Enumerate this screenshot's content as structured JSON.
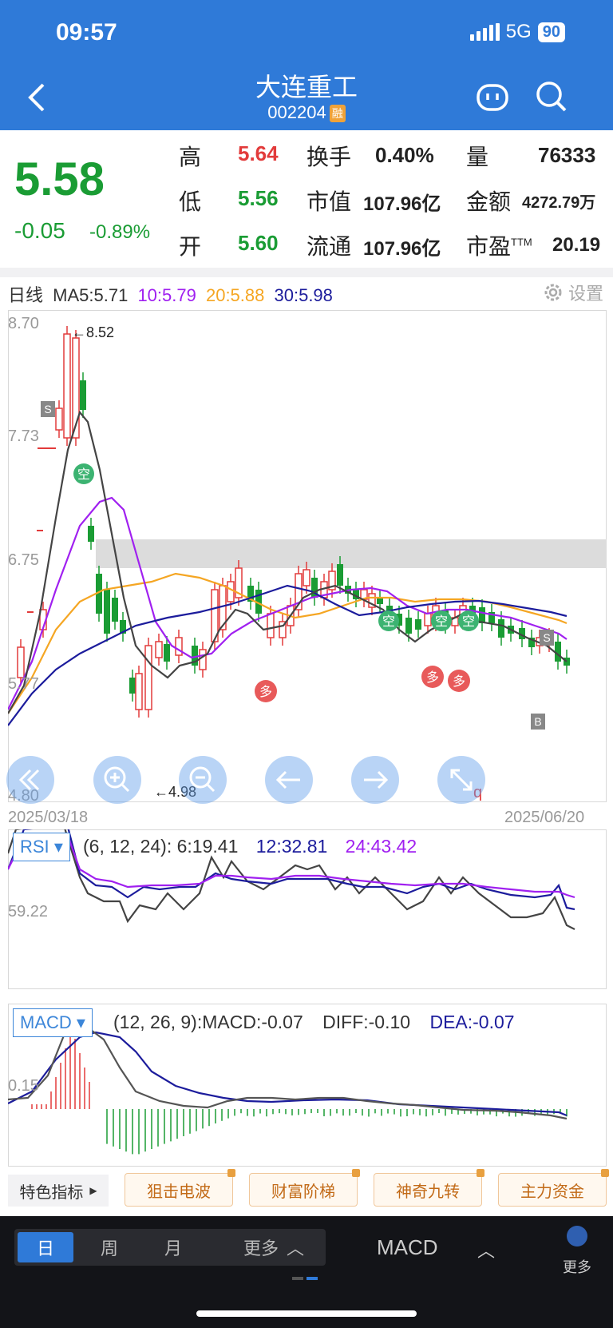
{
  "status": {
    "time": "09:57",
    "network": "5G",
    "battery": "90"
  },
  "stock": {
    "name": "大连重工",
    "code": "002204",
    "tag": "融"
  },
  "quote": {
    "price": "5.58",
    "change": "-0.05",
    "change_pct": "-0.89%",
    "high_label": "高",
    "high": "5.64",
    "low_label": "低",
    "low": "5.56",
    "open_label": "开",
    "open": "5.60",
    "turnover_label": "换手",
    "turnover": "0.40%",
    "mcap_label": "市值",
    "mcap": "107.96亿",
    "float_label": "流通",
    "float": "107.96亿",
    "vol_label": "量",
    "vol": "76333",
    "amount_label": "金额",
    "amount": "4272.79万",
    "pe_label": "市盈",
    "pe_sup": "TTM",
    "pe": "20.19"
  },
  "kline": {
    "period_label": "日线",
    "ma5": "MA5:5.71",
    "ma10": "10:5.79",
    "ma20": "20:5.88",
    "ma30": "30:5.98",
    "settings": "设置",
    "y_labels": [
      "8.70",
      "7.73",
      "6.75",
      "5.77",
      "4.80"
    ],
    "high_mark": "←8.52",
    "low_mark": "←4.98",
    "date_start": "2025/03/18",
    "date_end": "2025/06/20",
    "signals": {
      "s": "S",
      "b": "B",
      "kong": "空",
      "duo": "多"
    },
    "q_mark": "q"
  },
  "rsi": {
    "name": "RSI",
    "params": "(6, 12, 24): 6:19.41",
    "v12": "12:32.81",
    "v24": "24:43.42",
    "level": "59.22"
  },
  "macd": {
    "name": "MACD",
    "params": "(12, 26, 9):MACD:-0.07",
    "diff": "DIFF:-0.10",
    "dea": "DEA:-0.07",
    "level": "0.15"
  },
  "features": {
    "label": "特色指标",
    "items": [
      "狙击电波",
      "财富阶梯",
      "神奇九转",
      "主力资金"
    ]
  },
  "bottom": {
    "day": "日",
    "week": "周",
    "month": "月",
    "more_period": "更多",
    "indicator": "MACD",
    "more": "更多"
  },
  "colors": {
    "up": "#e23b3b",
    "down": "#1a9c34",
    "ma5": "#333333",
    "ma10": "#a020f0",
    "ma20": "#f5a623",
    "ma30": "#1c1c9c",
    "accent": "#2f7ad8"
  }
}
